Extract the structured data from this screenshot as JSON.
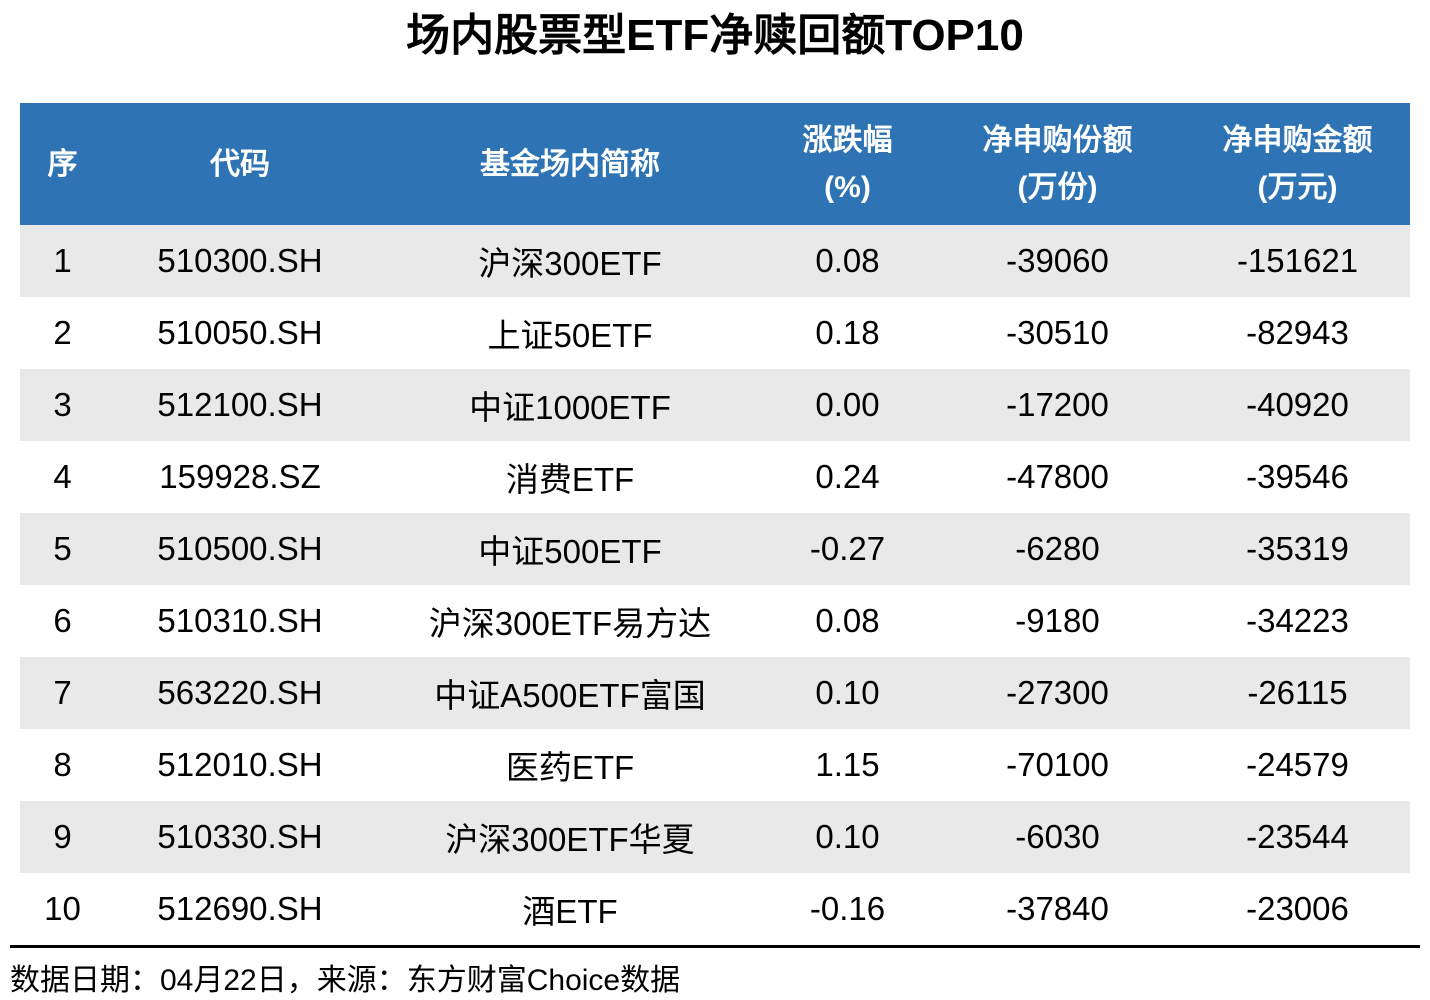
{
  "title": "场内股票型ETF净赎回额TOP10",
  "table": {
    "headers": [
      {
        "label": "序"
      },
      {
        "label": "代码"
      },
      {
        "label": "基金场内简称"
      },
      {
        "label": "涨跌幅",
        "unit": "(%)"
      },
      {
        "label": "净申购份额",
        "unit": "(万份)"
      },
      {
        "label": "净申购金额",
        "unit": "(万元)"
      }
    ]
  },
  "chart_data": {
    "type": "table",
    "title": "场内股票型ETF净赎回额TOP10",
    "columns": [
      "序",
      "代码",
      "基金场内简称",
      "涨跌幅(%)",
      "净申购份额(万份)",
      "净申购金额(万元)"
    ],
    "rows": [
      {
        "rank": "1",
        "code": "510300.SH",
        "name": "沪深300ETF",
        "change_pct": "0.08",
        "net_shares_wan": "-39060",
        "net_amount_wan": "-151621"
      },
      {
        "rank": "2",
        "code": "510050.SH",
        "name": "上证50ETF",
        "change_pct": "0.18",
        "net_shares_wan": "-30510",
        "net_amount_wan": "-82943"
      },
      {
        "rank": "3",
        "code": "512100.SH",
        "name": "中证1000ETF",
        "change_pct": "0.00",
        "net_shares_wan": "-17200",
        "net_amount_wan": "-40920"
      },
      {
        "rank": "4",
        "code": "159928.SZ",
        "name": "消费ETF",
        "change_pct": "0.24",
        "net_shares_wan": "-47800",
        "net_amount_wan": "-39546"
      },
      {
        "rank": "5",
        "code": "510500.SH",
        "name": "中证500ETF",
        "change_pct": "-0.27",
        "net_shares_wan": "-6280",
        "net_amount_wan": "-35319"
      },
      {
        "rank": "6",
        "code": "510310.SH",
        "name": "沪深300ETF易方达",
        "change_pct": "0.08",
        "net_shares_wan": "-9180",
        "net_amount_wan": "-34223"
      },
      {
        "rank": "7",
        "code": "563220.SH",
        "name": "中证A500ETF富国",
        "change_pct": "0.10",
        "net_shares_wan": "-27300",
        "net_amount_wan": "-26115"
      },
      {
        "rank": "8",
        "code": "512010.SH",
        "name": "医药ETF",
        "change_pct": "1.15",
        "net_shares_wan": "-70100",
        "net_amount_wan": "-24579"
      },
      {
        "rank": "9",
        "code": "510330.SH",
        "name": "沪深300ETF华夏",
        "change_pct": "0.10",
        "net_shares_wan": "-6030",
        "net_amount_wan": "-23544"
      },
      {
        "rank": "10",
        "code": "512690.SH",
        "name": "酒ETF",
        "change_pct": "-0.16",
        "net_shares_wan": "-37840",
        "net_amount_wan": "-23006"
      }
    ]
  },
  "footer": {
    "text": "数据日期：04月22日，来源：东方财富Choice数据"
  },
  "colors": {
    "header_bg": "#2E74B5",
    "header_text": "#FFFFFF",
    "row_alt_bg": "#E9E9E9",
    "row_bg": "#FFFFFF",
    "title_text": "#000000",
    "divider": "#000000"
  }
}
